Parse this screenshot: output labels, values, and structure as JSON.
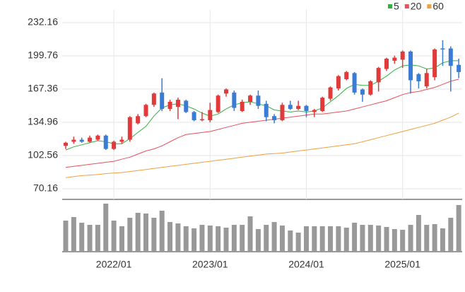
{
  "chart_data": {
    "type": "candlestick",
    "categories": [
      null,
      null,
      null,
      null,
      null,
      null,
      "2022/01",
      null,
      null,
      null,
      null,
      null,
      null,
      null,
      null,
      null,
      null,
      null,
      "2023/01",
      null,
      null,
      null,
      null,
      null,
      null,
      null,
      null,
      null,
      null,
      null,
      "2024/01",
      null,
      null,
      null,
      null,
      null,
      null,
      null,
      null,
      null,
      null,
      null,
      "2025/01",
      null,
      null,
      null,
      null,
      null,
      null,
      null
    ],
    "open": [
      112,
      116,
      118,
      116,
      118,
      122,
      109,
      116,
      118,
      134,
      141,
      152,
      164,
      148,
      150,
      156,
      145,
      137,
      137,
      145,
      163,
      164,
      146,
      155,
      161,
      153,
      141,
      137,
      152,
      148,
      151,
      145,
      146,
      158,
      168,
      177,
      183,
      167,
      162,
      174,
      187,
      195,
      196,
      204,
      182,
      170,
      179,
      207,
      207,
      191
    ],
    "high": [
      116,
      121,
      120,
      122,
      123,
      123,
      117,
      121,
      141,
      143,
      153,
      164,
      178,
      157,
      159,
      157,
      146,
      145,
      154,
      162,
      168,
      166,
      157,
      162,
      166,
      156,
      143,
      154,
      156,
      156,
      152,
      148,
      160,
      170,
      181,
      185,
      184,
      168,
      176,
      189,
      198,
      200,
      205,
      205,
      183,
      187,
      207,
      215,
      209,
      197
    ],
    "low": [
      109,
      114,
      115,
      115,
      117,
      108,
      108,
      114,
      116,
      133,
      140,
      150,
      146,
      146,
      138,
      144,
      136,
      136,
      135,
      144,
      160,
      146,
      145,
      152,
      148,
      136,
      134,
      136,
      147,
      147,
      140,
      140,
      145,
      156,
      166,
      176,
      162,
      155,
      161,
      165,
      185,
      192,
      188,
      163,
      168,
      168,
      176,
      190,
      165,
      178
    ],
    "close": [
      115,
      118,
      116,
      120,
      122,
      109,
      116,
      118,
      140,
      141,
      152,
      163,
      148,
      155,
      157,
      145,
      137,
      138,
      147,
      161,
      167,
      149,
      155,
      161,
      151,
      140,
      137,
      152,
      148,
      151,
      146,
      147,
      159,
      169,
      180,
      184,
      164,
      162,
      175,
      188,
      197,
      198,
      204,
      176,
      175,
      183,
      206,
      206,
      190,
      184
    ],
    "up_color": "#e03a3a",
    "down_color": "#3a7bd5",
    "series": [
      {
        "name": "5",
        "color": "#33b040",
        "values": [
          108,
          111,
          113,
          115,
          117,
          116,
          114,
          114,
          119,
          125,
          131,
          141,
          149,
          152,
          153,
          151,
          148,
          144,
          141,
          143,
          148,
          152,
          154,
          155,
          153,
          151,
          147,
          146,
          145,
          146,
          145,
          146,
          149,
          155,
          161,
          168,
          172,
          171,
          171,
          175,
          180,
          186,
          190,
          191,
          190,
          187,
          188,
          193,
          195,
          195
        ]
      },
      {
        "name": "20",
        "color": "#e8505b",
        "values": [
          91,
          92,
          93,
          94,
          95,
          96,
          97,
          99,
          101,
          104,
          107,
          109,
          112,
          116,
          120,
          123,
          124,
          125,
          126,
          128,
          130,
          132,
          134,
          135,
          136,
          137,
          138,
          139,
          140,
          141,
          142,
          143,
          143,
          144,
          145,
          146,
          148,
          150,
          152,
          154,
          156,
          159,
          162,
          164,
          165,
          167,
          169,
          172,
          175,
          177
        ]
      },
      {
        "name": "60",
        "color": "#f0a040",
        "values": [
          81,
          82,
          83,
          83.5,
          84,
          85,
          85.5,
          86,
          87,
          88,
          89,
          90,
          91,
          92,
          93,
          94,
          95,
          96,
          97,
          98,
          99,
          100,
          101,
          102,
          103,
          104,
          104.5,
          105,
          106,
          107,
          108,
          109,
          110,
          111,
          112,
          113,
          114,
          116,
          118,
          120,
          122,
          124,
          126,
          128,
          130,
          132,
          134,
          137,
          140,
          144
        ]
      }
    ],
    "volume": [
      44,
      49,
      41,
      38,
      38,
      68,
      44,
      36,
      48,
      55,
      54,
      48,
      58,
      42,
      40,
      36,
      33,
      38,
      37,
      36,
      34,
      38,
      38,
      50,
      32,
      38,
      42,
      37,
      30,
      27,
      36,
      36,
      36,
      36,
      36,
      34,
      41,
      38,
      38,
      37,
      35,
      32,
      31,
      38,
      52,
      38,
      39,
      33,
      48,
      66
    ],
    "volume_color": "#999999",
    "vlim": [
      0,
      70
    ],
    "ylim": [
      59.8,
      244.6
    ],
    "yticks": [
      70.16,
      102.56,
      134.96,
      167.36,
      199.76,
      232.16
    ],
    "grid": true
  }
}
